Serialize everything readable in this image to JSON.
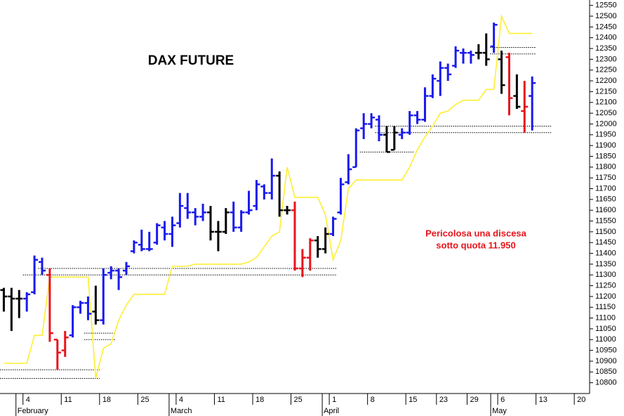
{
  "chart_data": {
    "type": "ohlc",
    "title": "DAX FUTURE",
    "annotation": [
      "Pericolosa una discesa",
      "sotto quota 11.950"
    ],
    "categories": [
      null,
      null,
      null,
      "4",
      null,
      null,
      null,
      null,
      "11",
      null,
      null,
      null,
      null,
      "18",
      null,
      null,
      null,
      null,
      "25",
      null,
      null,
      null,
      null,
      "4",
      null,
      null,
      null,
      null,
      "11",
      null,
      null,
      null,
      null,
      "18",
      null,
      null,
      null,
      null,
      "25",
      null,
      null,
      null,
      null,
      "1",
      null,
      null,
      null,
      null,
      "8",
      null,
      null,
      null,
      null,
      "15",
      null,
      null,
      null,
      "23",
      null,
      null,
      null,
      "29",
      null,
      null,
      null,
      "6",
      null,
      null,
      null,
      null,
      "13",
      null,
      null,
      null,
      null,
      "20",
      null
    ],
    "months": [
      null,
      null,
      null,
      "February",
      null,
      null,
      null,
      null,
      null,
      null,
      null,
      null,
      null,
      null,
      null,
      null,
      null,
      null,
      null,
      null,
      null,
      null,
      null,
      "March",
      null,
      null,
      null,
      null,
      null,
      null,
      null,
      null,
      null,
      null,
      null,
      null,
      null,
      null,
      null,
      null,
      null,
      null,
      null,
      "April",
      null,
      null,
      null,
      null,
      null,
      null,
      null,
      null,
      null,
      null,
      null,
      null,
      null,
      null,
      null,
      null,
      null,
      null,
      null,
      null,
      null,
      "May",
      null,
      null,
      null,
      null,
      null,
      null,
      null,
      null,
      null,
      null,
      null
    ],
    "open": [
      11230,
      11200,
      11190,
      11190,
      11220,
      11360,
      11300,
      11000,
      10950,
      11020,
      11150,
      11170,
      11130,
      11090,
      11310,
      11320,
      11320,
      11410,
      11440,
      11420,
      11450,
      11520,
      11490,
      11540,
      11610,
      11590,
      11570,
      11590,
      11500,
      11500,
      11590,
      11520,
      11590,
      11620,
      11710,
      11680,
      11760,
      11600,
      11600,
      11330,
      11380,
      11460,
      11420,
      11490,
      11590,
      11730,
      11800,
      11980,
      12000,
      12020,
      11950,
      11880,
      11950,
      11960,
      12040,
      12020,
      12130,
      12200,
      12260,
      12270,
      12330,
      12330,
      12330,
      12330,
      12360,
      12300,
      12310,
      12130,
      12060,
      12130,
      null,
      null,
      null,
      null,
      null,
      null,
      null
    ],
    "high": [
      11240,
      11240,
      11230,
      11220,
      11390,
      11380,
      11330,
      11000,
      11040,
      11160,
      11180,
      11200,
      11250,
      11330,
      11340,
      11330,
      11360,
      11460,
      11510,
      11500,
      11540,
      11550,
      11570,
      11680,
      11680,
      11610,
      11630,
      11620,
      11550,
      11610,
      11640,
      11600,
      11690,
      11740,
      11720,
      11840,
      11780,
      11620,
      11640,
      11420,
      11470,
      11480,
      11520,
      11570,
      11750,
      11860,
      11980,
      12050,
      12050,
      12040,
      11990,
      11990,
      11980,
      12060,
      12060,
      12170,
      12230,
      12290,
      12280,
      12360,
      12350,
      12340,
      12370,
      12420,
      12470,
      12340,
      12330,
      12230,
      12200,
      12220,
      null,
      null,
      null,
      null,
      null,
      null,
      null
    ],
    "low": [
      11130,
      11040,
      11100,
      11130,
      11210,
      11300,
      10990,
      10860,
      10920,
      11010,
      11120,
      11090,
      11070,
      11070,
      11280,
      11230,
      11300,
      11400,
      11410,
      11410,
      11440,
      11460,
      11430,
      11520,
      11560,
      11530,
      11550,
      11460,
      11410,
      11490,
      11500,
      11500,
      11580,
      11600,
      11650,
      11650,
      11570,
      11580,
      11320,
      11290,
      11320,
      11380,
      11400,
      11480,
      11580,
      11720,
      11800,
      11930,
      11980,
      11920,
      11870,
      11880,
      11930,
      11950,
      12000,
      12010,
      12120,
      12130,
      12200,
      12260,
      12280,
      12280,
      12300,
      12270,
      12330,
      12140,
      12040,
      12070,
      11960,
      11970,
      null,
      null,
      null,
      null,
      null,
      null,
      null
    ],
    "close": [
      11200,
      11190,
      11190,
      11210,
      11370,
      11320,
      11030,
      10940,
      11010,
      11150,
      11170,
      11120,
      11090,
      11300,
      11320,
      11290,
      11340,
      11450,
      11420,
      11420,
      11530,
      11490,
      11530,
      11620,
      11590,
      11570,
      11590,
      11500,
      11500,
      11590,
      11520,
      11590,
      11600,
      11720,
      11680,
      11760,
      11600,
      11600,
      11330,
      11380,
      11460,
      11420,
      11490,
      11560,
      11720,
      11790,
      11970,
      12000,
      12030,
      11950,
      11870,
      11960,
      11960,
      12040,
      12020,
      12130,
      12210,
      12260,
      12230,
      12340,
      12330,
      12320,
      12330,
      12300,
      12460,
      12180,
      12120,
      12080,
      12080,
      12190,
      null,
      null,
      null,
      null,
      null,
      null,
      null
    ],
    "colors": [
      "#000000",
      "#000000",
      "#000000",
      "#1a1aee",
      "#1a1aee",
      "#1a1aee",
      "#e8141b",
      "#e8141b",
      "#e8141b",
      "#1a1aee",
      "#1a1aee",
      "#1a1aee",
      "#000000",
      "#1a1aee",
      "#1a1aee",
      "#1a1aee",
      "#1a1aee",
      "#1a1aee",
      "#1a1aee",
      "#1a1aee",
      "#1a1aee",
      "#1a1aee",
      "#1a1aee",
      "#1a1aee",
      "#1a1aee",
      "#1a1aee",
      "#1a1aee",
      "#000000",
      "#000000",
      "#000000",
      "#1a1aee",
      "#1a1aee",
      "#1a1aee",
      "#1a1aee",
      "#1a1aee",
      "#1a1aee",
      "#000000",
      "#000000",
      "#e8141b",
      "#e8141b",
      "#e8141b",
      "#000000",
      "#000000",
      "#1a1aee",
      "#1a1aee",
      "#1a1aee",
      "#1a1aee",
      "#1a1aee",
      "#1a1aee",
      "#1a1aee",
      "#000000",
      "#000000",
      "#1a1aee",
      "#1a1aee",
      "#1a1aee",
      "#1a1aee",
      "#1a1aee",
      "#1a1aee",
      "#1a1aee",
      "#1a1aee",
      "#1a1aee",
      "#1a1aee",
      "#000000",
      "#000000",
      "#1a1aee",
      "#000000",
      "#e8141b",
      "#000000",
      "#e8141b",
      "#1a1aee",
      null,
      null,
      null,
      null,
      null,
      null,
      null
    ],
    "support": {
      "color": "#ffee33",
      "values": [
        10890,
        10890,
        10890,
        10890,
        11020,
        11020,
        11290,
        11290,
        11290,
        11290,
        11290,
        11290,
        10820,
        10960,
        10980,
        11090,
        11160,
        11210,
        11210,
        11210,
        11210,
        11210,
        11340,
        11340,
        11340,
        11350,
        11350,
        11350,
        11350,
        11350,
        11350,
        11350,
        11360,
        11380,
        11430,
        11480,
        11500,
        11800,
        11660,
        11660,
        11660,
        11660,
        11580,
        11370,
        11460,
        11700,
        11740,
        11740,
        11740,
        11740,
        11740,
        11740,
        11740,
        11800,
        11880,
        11940,
        11990,
        12050,
        12060,
        12090,
        12110,
        12110,
        12110,
        12160,
        12160,
        12500,
        12420,
        12420,
        12420,
        12420,
        null,
        null,
        null,
        null,
        null,
        null,
        null
      ]
    },
    "levels": [
      {
        "value": 10860,
        "from": 0,
        "to": 12
      },
      {
        "value": 10820,
        "from": 0,
        "to": 12
      },
      {
        "value": 11030,
        "from": 11,
        "to": 14
      },
      {
        "value": 11000,
        "from": 11,
        "to": 14
      },
      {
        "value": 11330,
        "from": 5,
        "to": 43
      },
      {
        "value": 11300,
        "from": 3,
        "to": 43
      },
      {
        "value": 11990,
        "from": 49,
        "to": 71
      },
      {
        "value": 11960,
        "from": 49,
        "to": 71
      },
      {
        "value": 11870,
        "from": 47,
        "to": 53
      },
      {
        "value": 12355,
        "from": 64,
        "to": 69
      },
      {
        "value": 12325,
        "from": 64,
        "to": 69
      }
    ],
    "ylim": [
      10750,
      12575
    ],
    "yticks": [
      10800,
      10850,
      10900,
      10950,
      11000,
      11050,
      11100,
      11150,
      11200,
      11250,
      11300,
      11350,
      11400,
      11450,
      11500,
      11550,
      11600,
      11650,
      11700,
      11750,
      11800,
      11850,
      11900,
      11950,
      12000,
      12050,
      12100,
      12150,
      12200,
      12250,
      12300,
      12350,
      12400,
      12450,
      12500,
      12550
    ]
  }
}
